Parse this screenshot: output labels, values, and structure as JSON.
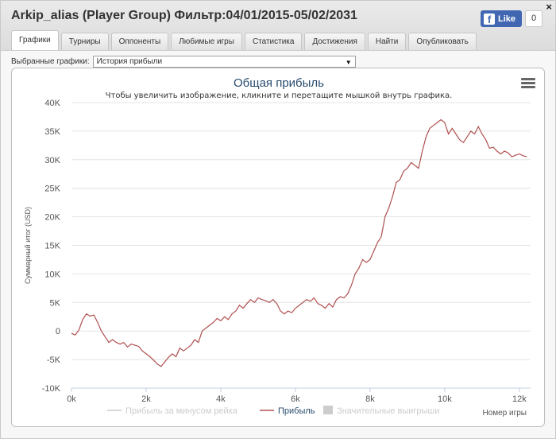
{
  "window": {
    "title": "Arkip_alias (Player Group) Фильтр:04/01/2015-05/02/2031",
    "close_glyph": "×"
  },
  "facebook": {
    "like_label": "Like",
    "count": "0"
  },
  "tabs": [
    {
      "label": "Графики",
      "active": true
    },
    {
      "label": "Турниры"
    },
    {
      "label": "Оппоненты"
    },
    {
      "label": "Любимые игры"
    },
    {
      "label": "Статистика"
    },
    {
      "label": "Достижения"
    },
    {
      "label": "Найти"
    },
    {
      "label": "Опубликовать"
    }
  ],
  "selector": {
    "label": "Выбранные графики:",
    "value": "История прибыли",
    "arrow": "▼"
  },
  "chart_data": {
    "type": "line",
    "title": "Общая прибыль",
    "subtitle": "Чтобы увеличить изображение, кликните и перетащите мышкой внутрь графика.",
    "ylabel": "Суммарный итог (USD)",
    "xlabel": "Номер игры",
    "xlim": [
      0,
      12300
    ],
    "ylim": [
      -10000,
      40000
    ],
    "x_ticks": [
      "0k",
      "2k",
      "4k",
      "6k",
      "8k",
      "10k",
      "12k"
    ],
    "x_tick_values": [
      0,
      2000,
      4000,
      6000,
      8000,
      10000,
      12000
    ],
    "y_ticks": [
      "40K",
      "35K",
      "30K",
      "25K",
      "20K",
      "15K",
      "10K",
      "5K",
      "0",
      "-5K",
      "-10K"
    ],
    "y_tick_values": [
      40000,
      35000,
      30000,
      25000,
      20000,
      15000,
      10000,
      5000,
      0,
      -5000,
      -10000
    ],
    "grid": true,
    "legend_position": "bottom",
    "legend": [
      {
        "name": "Прибыль за минусом рейка",
        "color": "#c9c9c9",
        "hidden": true,
        "symbol": "line"
      },
      {
        "name": "Прибыль",
        "color": "#b05050",
        "hidden": false,
        "symbol": "line"
      },
      {
        "name": "Значительные выигрыши",
        "color": "#c9c9c9",
        "hidden": true,
        "symbol": "box"
      }
    ],
    "series": [
      {
        "name": "Прибыль",
        "color": "#b05050",
        "points": [
          [
            0,
            -400
          ],
          [
            100,
            -700
          ],
          [
            200,
            200
          ],
          [
            300,
            2000
          ],
          [
            400,
            3000
          ],
          [
            500,
            2600
          ],
          [
            600,
            2800
          ],
          [
            700,
            1500
          ],
          [
            800,
            0
          ],
          [
            900,
            -1000
          ],
          [
            1000,
            -2000
          ],
          [
            1100,
            -1500
          ],
          [
            1200,
            -2000
          ],
          [
            1300,
            -2300
          ],
          [
            1400,
            -2000
          ],
          [
            1500,
            -2800
          ],
          [
            1600,
            -2300
          ],
          [
            1700,
            -2500
          ],
          [
            1800,
            -2700
          ],
          [
            1900,
            -3500
          ],
          [
            2000,
            -4000
          ],
          [
            2100,
            -4500
          ],
          [
            2200,
            -5100
          ],
          [
            2300,
            -5800
          ],
          [
            2400,
            -6200
          ],
          [
            2500,
            -5400
          ],
          [
            2600,
            -4600
          ],
          [
            2700,
            -4000
          ],
          [
            2800,
            -4500
          ],
          [
            2900,
            -3000
          ],
          [
            3000,
            -3500
          ],
          [
            3100,
            -3000
          ],
          [
            3200,
            -2500
          ],
          [
            3300,
            -1500
          ],
          [
            3400,
            -2000
          ],
          [
            3500,
            0
          ],
          [
            3600,
            500
          ],
          [
            3700,
            1000
          ],
          [
            3800,
            1500
          ],
          [
            3900,
            2200
          ],
          [
            4000,
            1800
          ],
          [
            4100,
            2500
          ],
          [
            4200,
            2000
          ],
          [
            4300,
            3000
          ],
          [
            4400,
            3500
          ],
          [
            4500,
            4500
          ],
          [
            4600,
            4000
          ],
          [
            4700,
            4800
          ],
          [
            4800,
            5500
          ],
          [
            4900,
            5000
          ],
          [
            5000,
            5800
          ],
          [
            5100,
            5500
          ],
          [
            5200,
            5300
          ],
          [
            5300,
            5000
          ],
          [
            5400,
            5500
          ],
          [
            5500,
            4800
          ],
          [
            5600,
            3500
          ],
          [
            5700,
            3000
          ],
          [
            5800,
            3500
          ],
          [
            5900,
            3200
          ],
          [
            6000,
            4000
          ],
          [
            6100,
            4500
          ],
          [
            6200,
            5000
          ],
          [
            6300,
            5500
          ],
          [
            6400,
            5200
          ],
          [
            6500,
            5800
          ],
          [
            6600,
            4800
          ],
          [
            6700,
            4500
          ],
          [
            6800,
            4000
          ],
          [
            6900,
            4800
          ],
          [
            7000,
            4200
          ],
          [
            7100,
            5500
          ],
          [
            7200,
            6000
          ],
          [
            7300,
            5800
          ],
          [
            7400,
            6500
          ],
          [
            7500,
            8000
          ],
          [
            7600,
            10000
          ],
          [
            7700,
            11000
          ],
          [
            7800,
            12500
          ],
          [
            7900,
            12000
          ],
          [
            8000,
            12500
          ],
          [
            8100,
            14000
          ],
          [
            8200,
            15500
          ],
          [
            8300,
            16500
          ],
          [
            8400,
            20000
          ],
          [
            8500,
            21500
          ],
          [
            8600,
            23500
          ],
          [
            8700,
            26000
          ],
          [
            8800,
            26500
          ],
          [
            8900,
            28000
          ],
          [
            9000,
            28500
          ],
          [
            9100,
            29500
          ],
          [
            9200,
            29000
          ],
          [
            9300,
            28500
          ],
          [
            9400,
            31500
          ],
          [
            9500,
            34000
          ],
          [
            9600,
            35500
          ],
          [
            9700,
            36000
          ],
          [
            9800,
            36500
          ],
          [
            9900,
            37000
          ],
          [
            10000,
            36500
          ],
          [
            10100,
            34500
          ],
          [
            10200,
            35500
          ],
          [
            10300,
            34500
          ],
          [
            10400,
            33500
          ],
          [
            10500,
            33000
          ],
          [
            10600,
            34000
          ],
          [
            10700,
            35000
          ],
          [
            10800,
            34500
          ],
          [
            10900,
            35800
          ],
          [
            11000,
            34500
          ],
          [
            11100,
            33500
          ],
          [
            11200,
            32000
          ],
          [
            11300,
            32200
          ],
          [
            11400,
            31500
          ],
          [
            11500,
            31000
          ],
          [
            11600,
            31500
          ],
          [
            11700,
            31200
          ],
          [
            11800,
            30500
          ],
          [
            11900,
            30800
          ],
          [
            12000,
            31000
          ],
          [
            12100,
            30700
          ],
          [
            12200,
            30500
          ]
        ]
      }
    ]
  }
}
